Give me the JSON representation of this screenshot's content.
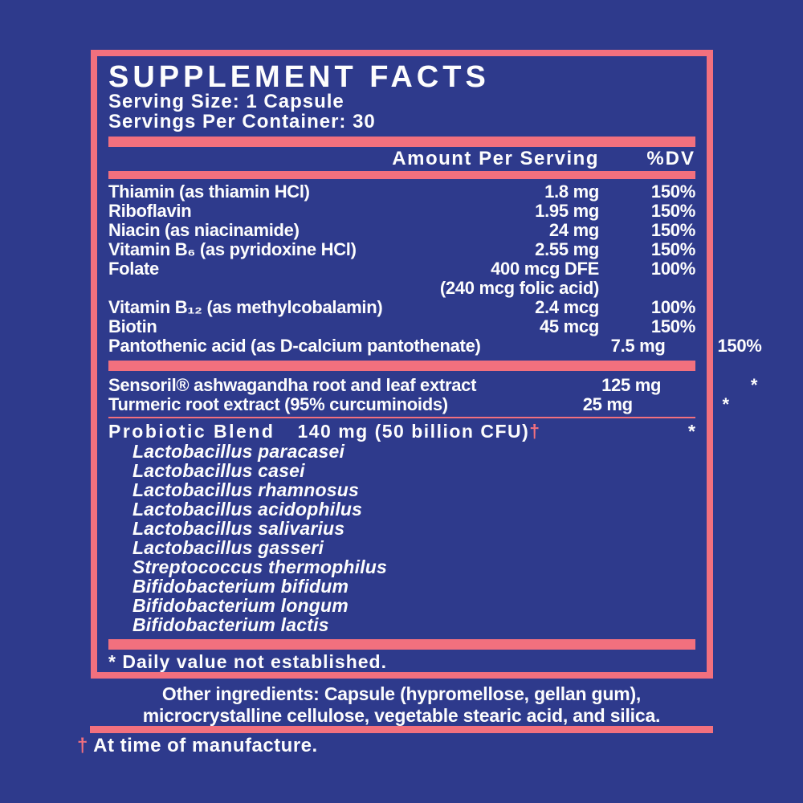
{
  "colors": {
    "background": "#2e3a8c",
    "accent_pink": "#f2707e",
    "text": "#fdfdfd"
  },
  "supplement_facts": {
    "title": "SUPPLEMENT FACTS",
    "serving_size": "Serving Size: 1 Capsule",
    "servings_per_container": "Servings Per Container: 30",
    "header": {
      "amount_col": "Amount Per Serving",
      "dv_col": "%DV"
    },
    "vitamins": [
      {
        "label": "Thiamin (as thiamin HCl)",
        "amount": "1.8 mg",
        "dv": "150%"
      },
      {
        "label": "Riboflavin",
        "amount": "1.95 mg",
        "dv": "150%"
      },
      {
        "label": "Niacin (as niacinamide)",
        "amount": "24 mg",
        "dv": "150%"
      },
      {
        "label": "Vitamin B₆ (as pyridoxine HCl)",
        "amount": "2.55 mg",
        "dv": "150%"
      },
      {
        "label": "Folate",
        "amount": "400 mcg DFE",
        "dv": "100%"
      },
      {
        "label": "",
        "amount": "(240 mcg folic acid)",
        "dv": ""
      },
      {
        "label": "Vitamin B₁₂ (as methylcobalamin)",
        "amount": "2.4 mcg",
        "dv": "100%"
      },
      {
        "label": "Biotin",
        "amount": "45 mcg",
        "dv": "150%"
      },
      {
        "label": "Pantothenic acid (as D-calcium pantothenate)",
        "amount": "7.5 mg",
        "dv": "150%"
      }
    ],
    "botanicals": [
      {
        "label": "Sensoril® ashwagandha root and leaf extract",
        "amount": "125 mg",
        "dv": "*"
      },
      {
        "label": "Turmeric root extract (95% curcuminoids)",
        "amount": "25 mg",
        "dv": "*"
      }
    ],
    "probiotic_blend": {
      "label": "Probiotic Blend",
      "amount": "140 mg (50 billion CFU)",
      "dagger": "†",
      "dv": "*",
      "species": [
        "Lactobacillus paracasei",
        "Lactobacillus casei",
        "Lactobacillus rhamnosus",
        "Lactobacillus acidophilus",
        "Lactobacillus salivarius",
        "Lactobacillus gasseri",
        "Streptococcus thermophilus",
        "Bifidobacterium bifidum",
        "Bifidobacterium longum",
        "Bifidobacterium lactis"
      ]
    },
    "footnote": "* Daily value not established."
  },
  "other_ingredients": {
    "lines": [
      "Other ingredients: Capsule (hypromellose, gellan gum),",
      "microcrystalline cellulose, vegetable stearic acid, and silica."
    ]
  },
  "manufacture_note": {
    "dagger": "†",
    "text": "At time of manufacture."
  }
}
